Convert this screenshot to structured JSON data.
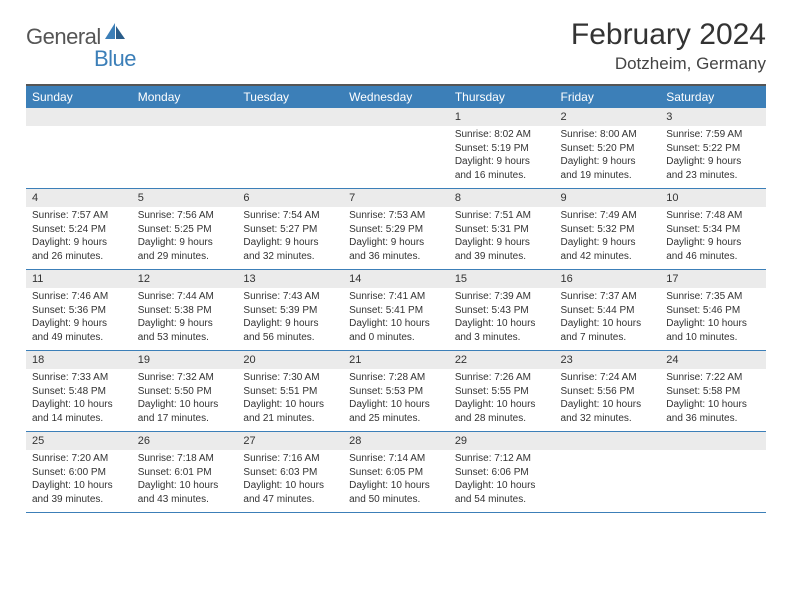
{
  "logo": {
    "text1": "General",
    "text2": "Blue"
  },
  "title": "February 2024",
  "location": "Dotzheim, Germany",
  "colors": {
    "header_bg": "#3c7fb8",
    "header_text": "#ffffff",
    "daynum_bg": "#ebebeb",
    "border": "#3c7fb8",
    "text": "#333333"
  },
  "weekdays": [
    "Sunday",
    "Monday",
    "Tuesday",
    "Wednesday",
    "Thursday",
    "Friday",
    "Saturday"
  ],
  "weeks": [
    {
      "nums": [
        "",
        "",
        "",
        "",
        "1",
        "2",
        "3"
      ],
      "details": [
        "",
        "",
        "",
        "",
        "Sunrise: 8:02 AM\nSunset: 5:19 PM\nDaylight: 9 hours and 16 minutes.",
        "Sunrise: 8:00 AM\nSunset: 5:20 PM\nDaylight: 9 hours and 19 minutes.",
        "Sunrise: 7:59 AM\nSunset: 5:22 PM\nDaylight: 9 hours and 23 minutes."
      ]
    },
    {
      "nums": [
        "4",
        "5",
        "6",
        "7",
        "8",
        "9",
        "10"
      ],
      "details": [
        "Sunrise: 7:57 AM\nSunset: 5:24 PM\nDaylight: 9 hours and 26 minutes.",
        "Sunrise: 7:56 AM\nSunset: 5:25 PM\nDaylight: 9 hours and 29 minutes.",
        "Sunrise: 7:54 AM\nSunset: 5:27 PM\nDaylight: 9 hours and 32 minutes.",
        "Sunrise: 7:53 AM\nSunset: 5:29 PM\nDaylight: 9 hours and 36 minutes.",
        "Sunrise: 7:51 AM\nSunset: 5:31 PM\nDaylight: 9 hours and 39 minutes.",
        "Sunrise: 7:49 AM\nSunset: 5:32 PM\nDaylight: 9 hours and 42 minutes.",
        "Sunrise: 7:48 AM\nSunset: 5:34 PM\nDaylight: 9 hours and 46 minutes."
      ]
    },
    {
      "nums": [
        "11",
        "12",
        "13",
        "14",
        "15",
        "16",
        "17"
      ],
      "details": [
        "Sunrise: 7:46 AM\nSunset: 5:36 PM\nDaylight: 9 hours and 49 minutes.",
        "Sunrise: 7:44 AM\nSunset: 5:38 PM\nDaylight: 9 hours and 53 minutes.",
        "Sunrise: 7:43 AM\nSunset: 5:39 PM\nDaylight: 9 hours and 56 minutes.",
        "Sunrise: 7:41 AM\nSunset: 5:41 PM\nDaylight: 10 hours and 0 minutes.",
        "Sunrise: 7:39 AM\nSunset: 5:43 PM\nDaylight: 10 hours and 3 minutes.",
        "Sunrise: 7:37 AM\nSunset: 5:44 PM\nDaylight: 10 hours and 7 minutes.",
        "Sunrise: 7:35 AM\nSunset: 5:46 PM\nDaylight: 10 hours and 10 minutes."
      ]
    },
    {
      "nums": [
        "18",
        "19",
        "20",
        "21",
        "22",
        "23",
        "24"
      ],
      "details": [
        "Sunrise: 7:33 AM\nSunset: 5:48 PM\nDaylight: 10 hours and 14 minutes.",
        "Sunrise: 7:32 AM\nSunset: 5:50 PM\nDaylight: 10 hours and 17 minutes.",
        "Sunrise: 7:30 AM\nSunset: 5:51 PM\nDaylight: 10 hours and 21 minutes.",
        "Sunrise: 7:28 AM\nSunset: 5:53 PM\nDaylight: 10 hours and 25 minutes.",
        "Sunrise: 7:26 AM\nSunset: 5:55 PM\nDaylight: 10 hours and 28 minutes.",
        "Sunrise: 7:24 AM\nSunset: 5:56 PM\nDaylight: 10 hours and 32 minutes.",
        "Sunrise: 7:22 AM\nSunset: 5:58 PM\nDaylight: 10 hours and 36 minutes."
      ]
    },
    {
      "nums": [
        "25",
        "26",
        "27",
        "28",
        "29",
        "",
        ""
      ],
      "details": [
        "Sunrise: 7:20 AM\nSunset: 6:00 PM\nDaylight: 10 hours and 39 minutes.",
        "Sunrise: 7:18 AM\nSunset: 6:01 PM\nDaylight: 10 hours and 43 minutes.",
        "Sunrise: 7:16 AM\nSunset: 6:03 PM\nDaylight: 10 hours and 47 minutes.",
        "Sunrise: 7:14 AM\nSunset: 6:05 PM\nDaylight: 10 hours and 50 minutes.",
        "Sunrise: 7:12 AM\nSunset: 6:06 PM\nDaylight: 10 hours and 54 minutes.",
        "",
        ""
      ]
    }
  ]
}
